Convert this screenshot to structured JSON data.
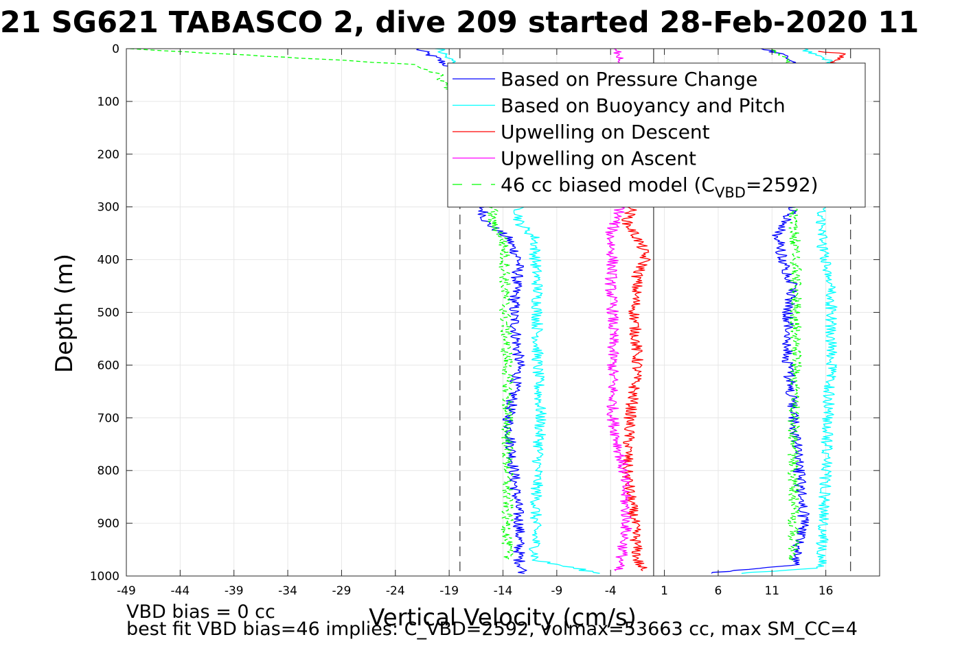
{
  "chart_data": {
    "type": "line",
    "title": "21 SG621 TABASCO 2, dive 209 started 28-Feb-2020 11",
    "xlabel": "Vertical Velocity (cm/s)",
    "ylabel": "Depth (m)",
    "xlim": [
      -49,
      21
    ],
    "ylim": [
      1000,
      0
    ],
    "x_ticks": [
      -49,
      -44,
      -39,
      -34,
      -29,
      -24,
      -19,
      -14,
      -9,
      -4,
      1,
      6,
      11,
      16
    ],
    "y_ticks": [
      0,
      100,
      200,
      300,
      400,
      500,
      600,
      700,
      800,
      900,
      1000
    ],
    "grid": true,
    "legend_position": "top-right",
    "reference_lines": {
      "dashed_left": -18.0,
      "dashed_right": 18.3,
      "solid_zero": 0
    },
    "series": [
      {
        "name": "Based on Pressure Change",
        "color": "#0000ff",
        "style": "solid",
        "descent": {
          "depth": [
            0,
            20,
            50,
            100,
            200,
            300,
            330,
            360,
            400,
            450,
            500,
            600,
            700,
            800,
            900,
            970,
            995
          ],
          "velocity": [
            -22,
            -20,
            -18,
            -17,
            -16.5,
            -16,
            -15.5,
            -13.5,
            -12.5,
            -12.8,
            -13,
            -12.5,
            -13.5,
            -13,
            -12.5,
            -12.5,
            -12
          ]
        },
        "ascent": {
          "depth": [
            995,
            980,
            900,
            800,
            700,
            600,
            500,
            450,
            400,
            350,
            320,
            300,
            200,
            100,
            30,
            10,
            0
          ],
          "velocity": [
            5,
            13,
            14,
            13.5,
            13,
            12.5,
            12.5,
            13,
            12,
            11.5,
            12.5,
            13,
            13,
            14,
            13,
            12,
            10
          ]
        }
      },
      {
        "name": "Based on Buoyancy and Pitch",
        "color": "#00ffff",
        "style": "solid",
        "descent": {
          "depth": [
            0,
            20,
            50,
            100,
            200,
            300,
            330,
            360,
            400,
            450,
            500,
            600,
            700,
            800,
            900,
            970,
            995
          ],
          "velocity": [
            -20,
            -19,
            -17,
            -15,
            -14,
            -12.5,
            -12.5,
            -11,
            -11,
            -10.8,
            -10.8,
            -10.8,
            -10.5,
            -10.8,
            -11,
            -11,
            -5
          ]
        },
        "ascent": {
          "depth": [
            995,
            985,
            900,
            800,
            700,
            600,
            500,
            430,
            400,
            350,
            300,
            200,
            100,
            50,
            20,
            0
          ],
          "velocity": [
            8,
            15.5,
            15.8,
            16,
            16.2,
            16.5,
            16.5,
            16.5,
            15.8,
            15.6,
            15.6,
            16,
            16,
            18,
            16,
            14
          ]
        }
      },
      {
        "name": "Upwelling on Descent",
        "color": "#ff0000",
        "style": "solid",
        "depth": [
          5,
          10,
          300,
          330,
          360,
          380,
          400,
          430,
          500,
          600,
          700,
          800,
          900,
          970,
          990
        ],
        "velocity": [
          15,
          18,
          -2,
          -2.5,
          -1.5,
          -1,
          -0.8,
          -1.5,
          -1.8,
          -1.5,
          -2.2,
          -2.5,
          -1.8,
          -1.5,
          -1
        ]
      },
      {
        "name": "Upwelling on Ascent",
        "color": "#ff00ff",
        "style": "solid",
        "depth": [
          0,
          10,
          300,
          350,
          400,
          450,
          500,
          600,
          700,
          800,
          900,
          970,
          990
        ],
        "velocity": [
          -4,
          -3,
          -3,
          -4,
          -3.8,
          -4,
          -3.8,
          -3.8,
          -3.8,
          -2.8,
          -2.5,
          -3,
          -3.5
        ]
      },
      {
        "name": "46 cc biased model (C_VBD=2592)",
        "color": "#00ff00",
        "style": "dashed",
        "descent": {
          "depth": [
            0,
            10,
            30,
            50,
            100,
            300,
            330,
            360,
            400,
            500,
            600,
            700,
            800,
            900,
            970
          ],
          "velocity": [
            -49,
            -40,
            -22,
            -20,
            -18,
            -15,
            -15,
            -14,
            -13.8,
            -13.8,
            -13.6,
            -13.6,
            -13.6,
            -13.6,
            -13.6
          ]
        },
        "ascent": {
          "depth": [
            970,
            900,
            800,
            700,
            600,
            500,
            400,
            300,
            100,
            10,
            0
          ],
          "velocity": [
            13,
            13,
            13,
            13,
            13.2,
            13.2,
            13.2,
            13,
            13,
            12,
            11
          ]
        }
      }
    ],
    "legend": [
      {
        "label": "Based on Pressure Change",
        "color": "#0000ff",
        "dashed": false
      },
      {
        "label": "Based on Buoyancy and Pitch",
        "color": "#00ffff",
        "dashed": false
      },
      {
        "label": "Upwelling on Descent",
        "color": "#ff0000",
        "dashed": false
      },
      {
        "label": "Upwelling on Ascent",
        "color": "#ff00ff",
        "dashed": false
      },
      {
        "label_prefix": "46 cc biased model (C",
        "label_sub": "VBD",
        "label_suffix": "=2592)",
        "color": "#00ff00",
        "dashed": true
      }
    ],
    "footer": {
      "line1": "VBD bias = 0 cc",
      "line2": "best fit VBD bias=46 implies: C_VBD=2592, volmax=53663 cc, max SM_CC=4"
    }
  }
}
